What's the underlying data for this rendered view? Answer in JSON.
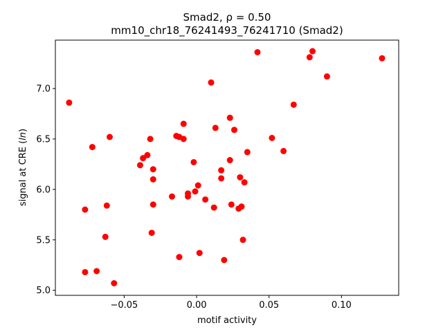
{
  "chart_data": {
    "type": "scatter",
    "title": "Smad2, ρ = 0.50",
    "subtitle": "mm10_chr18_76241493_76241710 (Smad2)",
    "xlabel": "motif activity",
    "ylabel": "signal at CRE (ln)",
    "xlim": [
      -0.0975,
      0.1395
    ],
    "ylim": [
      4.95,
      7.48
    ],
    "x_ticks": [
      -0.05,
      0.0,
      0.05,
      0.1
    ],
    "x_tick_labels": [
      "−0.05",
      "0.00",
      "0.05",
      "0.10"
    ],
    "y_ticks": [
      5.0,
      5.5,
      6.0,
      6.5,
      7.0
    ],
    "y_tick_labels": [
      "5.0",
      "5.5",
      "6.0",
      "6.5",
      "7.0"
    ],
    "grid": false,
    "marker_color": "#ff0000",
    "points": [
      {
        "x": -0.088,
        "y": 6.86
      },
      {
        "x": -0.077,
        "y": 5.8
      },
      {
        "x": -0.077,
        "y": 5.18
      },
      {
        "x": -0.072,
        "y": 6.42
      },
      {
        "x": -0.069,
        "y": 5.19
      },
      {
        "x": -0.063,
        "y": 5.53
      },
      {
        "x": -0.062,
        "y": 5.84
      },
      {
        "x": -0.06,
        "y": 6.52
      },
      {
        "x": -0.057,
        "y": 5.07
      },
      {
        "x": -0.039,
        "y": 6.24
      },
      {
        "x": -0.037,
        "y": 6.31
      },
      {
        "x": -0.034,
        "y": 6.34
      },
      {
        "x": -0.032,
        "y": 6.5
      },
      {
        "x": -0.031,
        "y": 5.57
      },
      {
        "x": -0.03,
        "y": 6.2
      },
      {
        "x": -0.03,
        "y": 6.1
      },
      {
        "x": -0.03,
        "y": 5.85
      },
      {
        "x": -0.017,
        "y": 5.93
      },
      {
        "x": -0.014,
        "y": 6.53
      },
      {
        "x": -0.012,
        "y": 6.52
      },
      {
        "x": -0.012,
        "y": 5.33
      },
      {
        "x": -0.009,
        "y": 6.65
      },
      {
        "x": -0.009,
        "y": 6.5
      },
      {
        "x": -0.006,
        "y": 5.96
      },
      {
        "x": -0.006,
        "y": 5.93
      },
      {
        "x": -0.002,
        "y": 6.27
      },
      {
        "x": -0.001,
        "y": 5.98
      },
      {
        "x": 0.001,
        "y": 6.04
      },
      {
        "x": 0.002,
        "y": 5.37
      },
      {
        "x": 0.006,
        "y": 5.9
      },
      {
        "x": 0.01,
        "y": 7.06
      },
      {
        "x": 0.012,
        "y": 5.82
      },
      {
        "x": 0.013,
        "y": 6.61
      },
      {
        "x": 0.017,
        "y": 6.19
      },
      {
        "x": 0.017,
        "y": 6.11
      },
      {
        "x": 0.019,
        "y": 5.3
      },
      {
        "x": 0.023,
        "y": 6.71
      },
      {
        "x": 0.023,
        "y": 6.29
      },
      {
        "x": 0.024,
        "y": 5.85
      },
      {
        "x": 0.026,
        "y": 6.59
      },
      {
        "x": 0.029,
        "y": 5.81
      },
      {
        "x": 0.03,
        "y": 6.12
      },
      {
        "x": 0.031,
        "y": 5.83
      },
      {
        "x": 0.032,
        "y": 5.5
      },
      {
        "x": 0.033,
        "y": 6.07
      },
      {
        "x": 0.035,
        "y": 6.37
      },
      {
        "x": 0.042,
        "y": 7.36
      },
      {
        "x": 0.052,
        "y": 6.51
      },
      {
        "x": 0.06,
        "y": 6.38
      },
      {
        "x": 0.067,
        "y": 6.84
      },
      {
        "x": 0.078,
        "y": 7.31
      },
      {
        "x": 0.08,
        "y": 7.37
      },
      {
        "x": 0.09,
        "y": 7.12
      },
      {
        "x": 0.128,
        "y": 7.3
      }
    ]
  }
}
